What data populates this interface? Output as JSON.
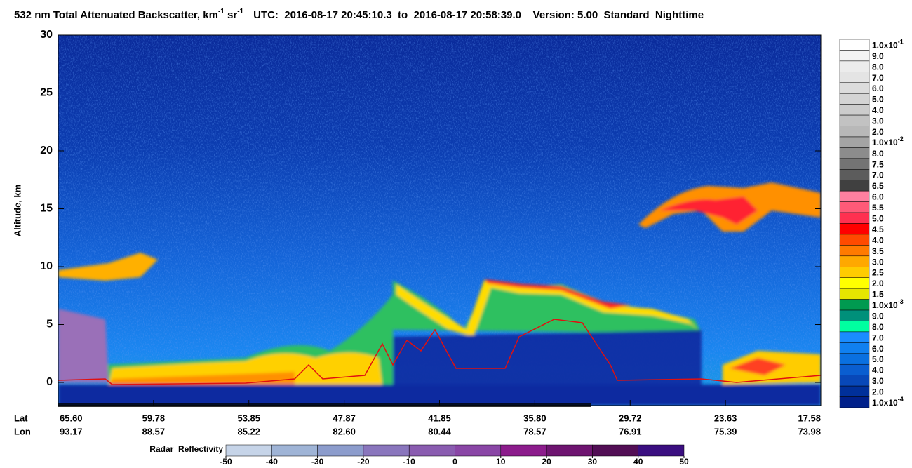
{
  "chart_data": {
    "type": "curtain",
    "title": {
      "text1": "532 nm Total Attenuated Backscatter, km",
      "sup1": "-1",
      "text2": " sr",
      "sup2": "-1"
    },
    "info": "UTC:  2016-08-17 20:45:10.3  to  2016-08-17 20:58:39.0    Version: 5.00  Standard  Nighttime",
    "y_label": "Altitude, km",
    "ylim": [
      -2,
      30
    ],
    "yticks": [
      0,
      5,
      10,
      15,
      20,
      25,
      30
    ],
    "x_labels": {
      "lat_title": "Lat",
      "lon_title": "Lon",
      "lat": [
        "65.60",
        "59.78",
        "53.85",
        "47.87",
        "41.85",
        "35.80",
        "29.72",
        "23.63",
        "17.58"
      ],
      "lon": [
        "93.17",
        "88.57",
        "85.22",
        "82.60",
        "80.44",
        "78.57",
        "76.91",
        "75.39",
        "73.98"
      ]
    },
    "colorbar": {
      "labels": [
        {
          "mantissa": "1.0x10",
          "exp": "-1"
        },
        "9.0",
        "8.0",
        "7.0",
        "6.0",
        "5.0",
        "4.0",
        "3.0",
        "2.0",
        {
          "mantissa": "1.0x10",
          "exp": "-2"
        },
        "8.0",
        "7.5",
        "7.0",
        "6.5",
        "6.0",
        "5.5",
        "5.0",
        "4.5",
        "4.0",
        "3.5",
        "3.0",
        "2.5",
        "2.0",
        "1.5",
        {
          "mantissa": "1.0x10",
          "exp": "-3"
        },
        "9.0",
        "8.0",
        "7.0",
        "6.0",
        "5.0",
        "4.0",
        "3.0",
        "2.0",
        {
          "mantissa": "1.0x10",
          "exp": "-4"
        }
      ],
      "colors": [
        "#ffffff",
        "#f4f4f4",
        "#ececec",
        "#e4e4e4",
        "#dcdcdc",
        "#d4d4d4",
        "#cccccc",
        "#c2c2c2",
        "#b8b8b8",
        "#a4a4a4",
        "#8c8c8c",
        "#747474",
        "#5c5c5c",
        "#404040",
        "#ff80a0",
        "#ff5a78",
        "#ff3050",
        "#ff0000",
        "#ff4a00",
        "#ff7a00",
        "#ffa800",
        "#ffcc00",
        "#ffff00",
        "#e6e600",
        "#009a50",
        "#00907a",
        "#00ffa0",
        "#1a8cff",
        "#1080f0",
        "#0a70e0",
        "#0a5ed0",
        "#0848b8",
        "#00309a",
        "#00208a"
      ]
    },
    "radar": {
      "title": "Radar_Reflectivity",
      "ticks": [
        -50,
        -40,
        -30,
        -20,
        -10,
        0,
        10,
        20,
        30,
        40,
        50
      ],
      "colors": [
        "#c6d4e8",
        "#9fb4d6",
        "#8c9ccc",
        "#8a76bd",
        "#8a5cb0",
        "#8a46a6",
        "#8c1c8c",
        "#6e1470",
        "#520e55",
        "#3a0e80"
      ]
    }
  }
}
